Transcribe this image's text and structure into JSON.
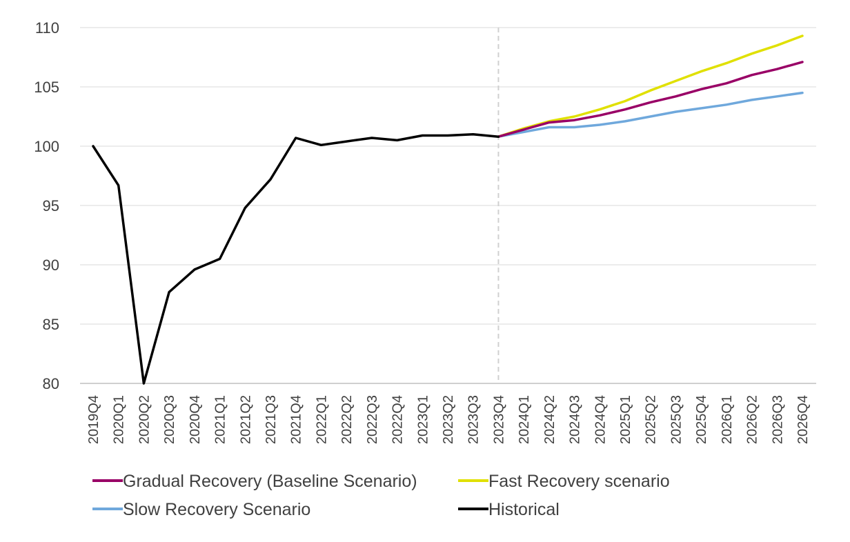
{
  "chart_data": {
    "type": "line",
    "title": "",
    "xlabel": "",
    "ylabel": "",
    "ylim": [
      80,
      110
    ],
    "yticks": [
      80,
      85,
      90,
      95,
      100,
      105,
      110
    ],
    "grid": true,
    "legend_position": "bottom",
    "forecast_start": "2023Q4",
    "categories": [
      "2019Q4",
      "2020Q1",
      "2020Q2",
      "2020Q3",
      "2020Q4",
      "2021Q1",
      "2021Q2",
      "2021Q3",
      "2021Q4",
      "2022Q1",
      "2022Q2",
      "2022Q3",
      "2022Q4",
      "2023Q1",
      "2023Q2",
      "2023Q3",
      "2023Q4",
      "2024Q1",
      "2024Q2",
      "2024Q3",
      "2024Q4",
      "2025Q1",
      "2025Q2",
      "2025Q3",
      "2025Q4",
      "2026Q1",
      "2026Q2",
      "2026Q3",
      "2026Q4"
    ],
    "series": [
      {
        "name": "Gradual Recovery (Baseline Scenario)",
        "color": "#990066",
        "values": [
          null,
          null,
          null,
          null,
          null,
          null,
          null,
          null,
          null,
          null,
          null,
          null,
          null,
          null,
          null,
          null,
          100.8,
          101.4,
          102.0,
          102.2,
          102.6,
          103.1,
          103.7,
          104.2,
          104.8,
          105.3,
          106.0,
          106.5,
          107.1
        ]
      },
      {
        "name": "Fast Recovery scenario",
        "color": "#e0e000",
        "values": [
          null,
          null,
          null,
          null,
          null,
          null,
          null,
          null,
          null,
          null,
          null,
          null,
          null,
          null,
          null,
          null,
          100.8,
          101.5,
          102.1,
          102.5,
          103.1,
          103.8,
          104.7,
          105.5,
          106.3,
          107.0,
          107.8,
          108.5,
          109.3
        ]
      },
      {
        "name": "Slow Recovery Scenario",
        "color": "#6fa8dc",
        "values": [
          null,
          null,
          null,
          null,
          null,
          null,
          null,
          null,
          null,
          null,
          null,
          null,
          null,
          null,
          null,
          null,
          100.8,
          101.2,
          101.6,
          101.6,
          101.8,
          102.1,
          102.5,
          102.9,
          103.2,
          103.5,
          103.9,
          104.2,
          104.5
        ]
      },
      {
        "name": "Historical",
        "color": "#000000",
        "values": [
          100.0,
          96.7,
          80.0,
          87.7,
          89.6,
          90.5,
          94.8,
          97.2,
          100.7,
          100.1,
          100.4,
          100.7,
          100.5,
          100.9,
          100.9,
          101.0,
          100.8,
          null,
          null,
          null,
          null,
          null,
          null,
          null,
          null,
          null,
          null,
          null,
          null
        ]
      }
    ]
  }
}
